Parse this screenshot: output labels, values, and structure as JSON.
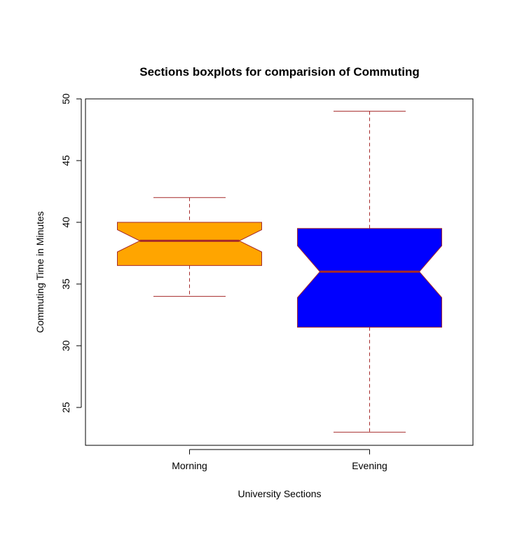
{
  "chart_data": {
    "type": "boxplot",
    "title": "Sections boxplots for comparision of Commuting",
    "xlabel": "University Sections",
    "ylabel": "Commuting Time in Minutes",
    "ylim": [
      22,
      50
    ],
    "yticks": [
      25,
      30,
      35,
      40,
      45,
      50
    ],
    "yticks_labels": [
      "25",
      "30",
      "35",
      "40",
      "45",
      "50"
    ],
    "categories": [
      "Morning",
      "Evening"
    ],
    "notched": true,
    "grid": false,
    "legend": "none",
    "boxes": [
      {
        "label": "Morning",
        "whisker_low": 34,
        "q1": 36.5,
        "median": 38.5,
        "q3": 40,
        "whisker_high": 42,
        "notch_low": 37.6,
        "notch_high": 39.4,
        "fill": "#FFA500"
      },
      {
        "label": "Evening",
        "whisker_low": 23,
        "q1": 31.5,
        "median": 36,
        "q3": 39.5,
        "whisker_high": 49,
        "notch_low": 33.9,
        "notch_high": 38.1,
        "fill": "#0000FF"
      }
    ],
    "colors": {
      "border": "#A52A2A",
      "median": "#A52A2A",
      "whisker": "#A52A2A"
    }
  }
}
